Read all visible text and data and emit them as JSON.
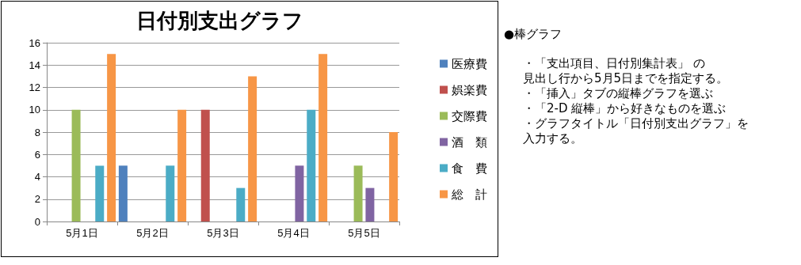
{
  "chart_data": {
    "type": "bar",
    "title": "日付別支出グラフ",
    "categories": [
      "5月1日",
      "5月2日",
      "5月3日",
      "5月4日",
      "5月5日"
    ],
    "series": [
      {
        "name": "医療費",
        "color": "#4f81bd",
        "values": [
          null,
          5,
          null,
          null,
          null
        ]
      },
      {
        "name": "娯楽費",
        "color": "#c0504d",
        "values": [
          null,
          null,
          10,
          null,
          null
        ]
      },
      {
        "name": "交際費",
        "color": "#9bbb59",
        "values": [
          10,
          null,
          null,
          null,
          5
        ]
      },
      {
        "name": "酒　類",
        "color": "#8064a2",
        "values": [
          null,
          null,
          null,
          5,
          3
        ]
      },
      {
        "name": "食　費",
        "color": "#4bacc6",
        "values": [
          5,
          5,
          3,
          10,
          null
        ]
      },
      {
        "name": "総　計",
        "color": "#f79646",
        "values": [
          15,
          10,
          13,
          15,
          8
        ]
      }
    ],
    "ylim": [
      0,
      16
    ],
    "yticks": [
      0,
      2,
      4,
      6,
      8,
      10,
      12,
      14,
      16
    ],
    "grid": "y",
    "legend": "right",
    "annotations": [
      "●棒グラフ",
      "・「支出項目、日付別集計表」 の",
      "見出し行から5月5日までを指定する。",
      "・「挿入」タブの縦棒グラフを選ぶ",
      "・「2-D 縦棒」から好きなものを選ぶ",
      "・グラフタイトル「日付別支出グラフ」を",
      "入力する。"
    ]
  }
}
